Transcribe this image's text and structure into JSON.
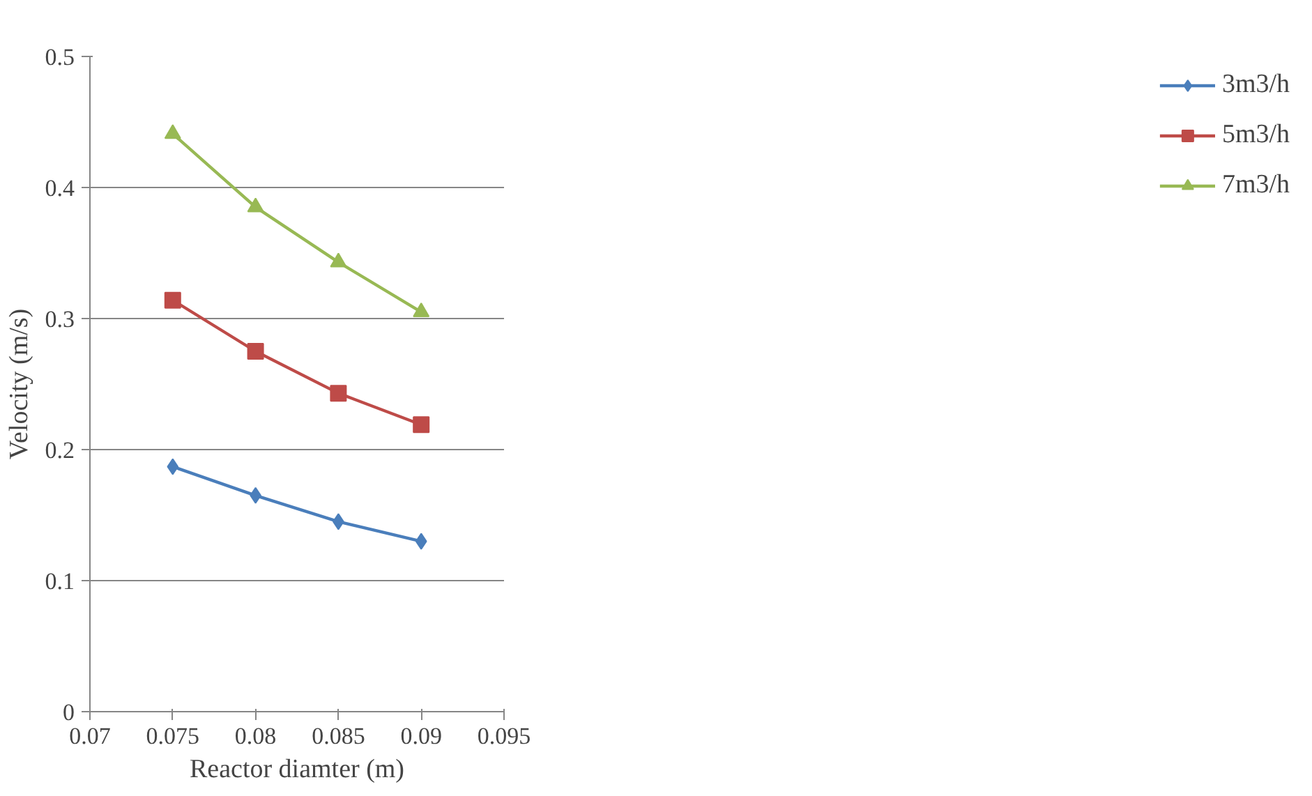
{
  "chart_data": {
    "type": "line",
    "xlabel": "Reactor diamter (m)",
    "ylabel": "Velocity (m/s)",
    "x": [
      0.075,
      0.08,
      0.085,
      0.09
    ],
    "series": [
      {
        "name": "3m3/h",
        "color": "#4a7ebb",
        "marker": "diamond",
        "values": [
          0.187,
          0.165,
          0.145,
          0.13
        ]
      },
      {
        "name": "5m3/h",
        "color": "#be4b48",
        "marker": "square",
        "values": [
          0.314,
          0.275,
          0.243,
          0.219
        ]
      },
      {
        "name": "7m3/h",
        "color": "#98b954",
        "marker": "triangle",
        "values": [
          0.441,
          0.385,
          0.343,
          0.305
        ]
      }
    ],
    "xlim": [
      0.07,
      0.095
    ],
    "xticks": [
      0.07,
      0.075,
      0.08,
      0.085,
      0.09,
      0.095
    ],
    "ylim": [
      0,
      0.5
    ],
    "yticks": [
      0,
      0.1,
      0.2,
      0.3,
      0.4,
      0.5
    ],
    "grid": "y",
    "legend": "right"
  }
}
